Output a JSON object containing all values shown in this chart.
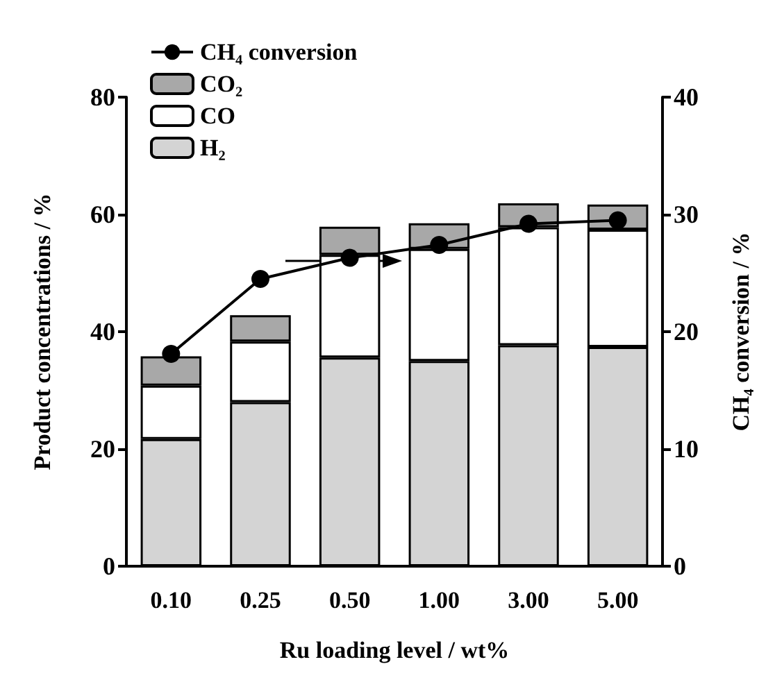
{
  "chart_data": {
    "type": "bar",
    "stacked": true,
    "xlabel": "Ru loading level / wt%",
    "ylabel": "Product concentrations / %",
    "y2label": "CH₄ conversion / %",
    "categories": [
      "0.10",
      "0.25",
      "0.50",
      "1.00",
      "3.00",
      "5.00"
    ],
    "series": [
      {
        "name": "H₂",
        "color": "#d4d4d4",
        "values": [
          21.7,
          28.0,
          35.6,
          35.0,
          37.7,
          37.4
        ]
      },
      {
        "name": "CO",
        "color": "#ffffff",
        "values": [
          9.1,
          10.3,
          17.5,
          19.1,
          20.1,
          20.0
        ]
      },
      {
        "name": "CO₂",
        "color": "#a8a8a8",
        "values": [
          5.0,
          4.5,
          4.8,
          4.4,
          4.1,
          4.3
        ]
      },
      {
        "name": "CH₄ conversion",
        "type": "line",
        "axis": "y2",
        "color": "#000000",
        "values": [
          18.1,
          24.5,
          26.3,
          27.4,
          29.2,
          29.5
        ]
      }
    ],
    "ylim": [
      0,
      80
    ],
    "yticks": [
      0,
      20,
      40,
      60,
      80
    ],
    "y2lim": [
      0,
      40
    ],
    "y2ticks": [
      0,
      10,
      20,
      30,
      40
    ],
    "grid": false,
    "legend": "top left",
    "marker": "circle",
    "line_style": "solid"
  }
}
